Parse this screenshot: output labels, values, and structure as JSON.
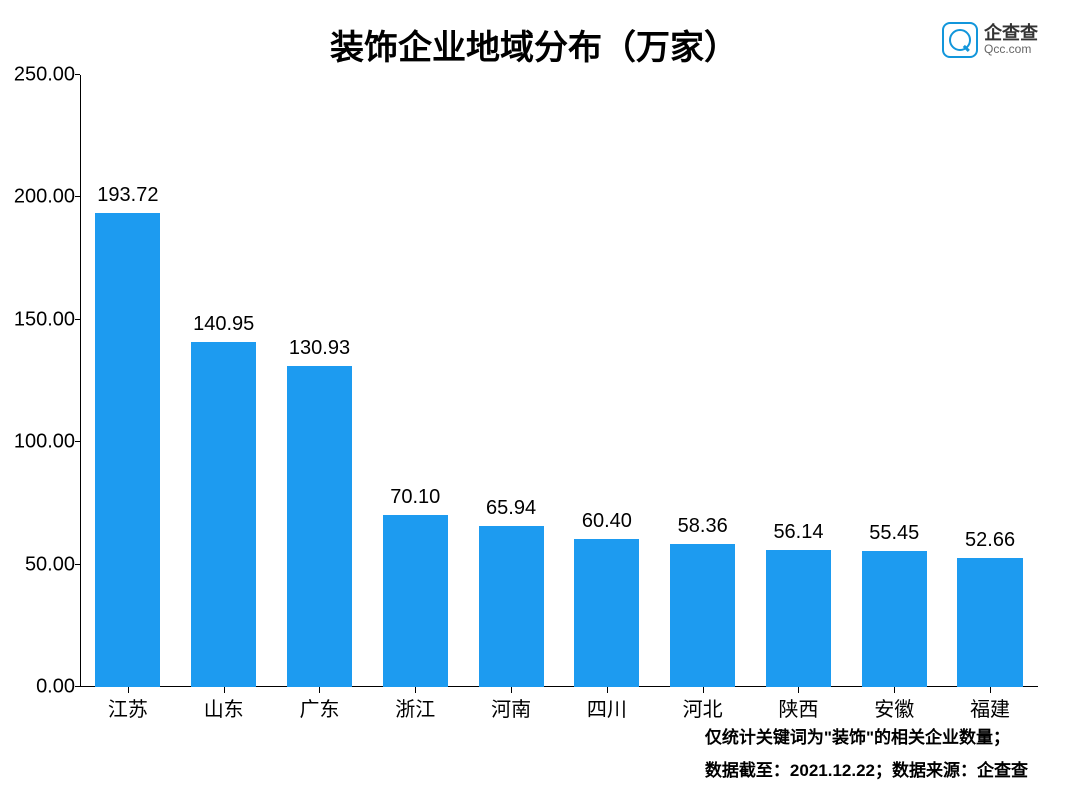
{
  "chart": {
    "type": "bar",
    "title": "装饰企业地域分布（万家）",
    "title_fontsize": 34,
    "title_color": "#000000",
    "categories": [
      "江苏",
      "山东",
      "广东",
      "浙江",
      "河南",
      "四川",
      "河北",
      "陕西",
      "安徽",
      "福建"
    ],
    "values": [
      193.72,
      140.95,
      130.93,
      70.1,
      65.94,
      60.4,
      58.36,
      56.14,
      55.45,
      52.66
    ],
    "value_labels": [
      "193.72",
      "140.95",
      "130.93",
      "70.10",
      "65.94",
      "60.40",
      "58.36",
      "56.14",
      "55.45",
      "52.66"
    ],
    "bar_color": "#1d9bf0",
    "ylim": [
      0,
      250
    ],
    "ytick_step": 50,
    "yticks": [
      "0.00",
      "50.00",
      "100.00",
      "150.00",
      "200.00",
      "250.00"
    ],
    "ytick_values": [
      0,
      50,
      100,
      150,
      200,
      250
    ],
    "axis_fontsize": 20,
    "axis_color": "#000000",
    "label_fontsize": 20,
    "bar_width_ratio": 0.68,
    "background_color": "#ffffff"
  },
  "logo": {
    "brand_name": "企查查",
    "brand_url": "Qcc.com",
    "icon_color": "#1296db"
  },
  "footnotes": {
    "line1": "仅统计关键词为\"装饰\"的相关企业数量；",
    "line2": "数据截至：2021.12.22；数据来源：企查查"
  }
}
